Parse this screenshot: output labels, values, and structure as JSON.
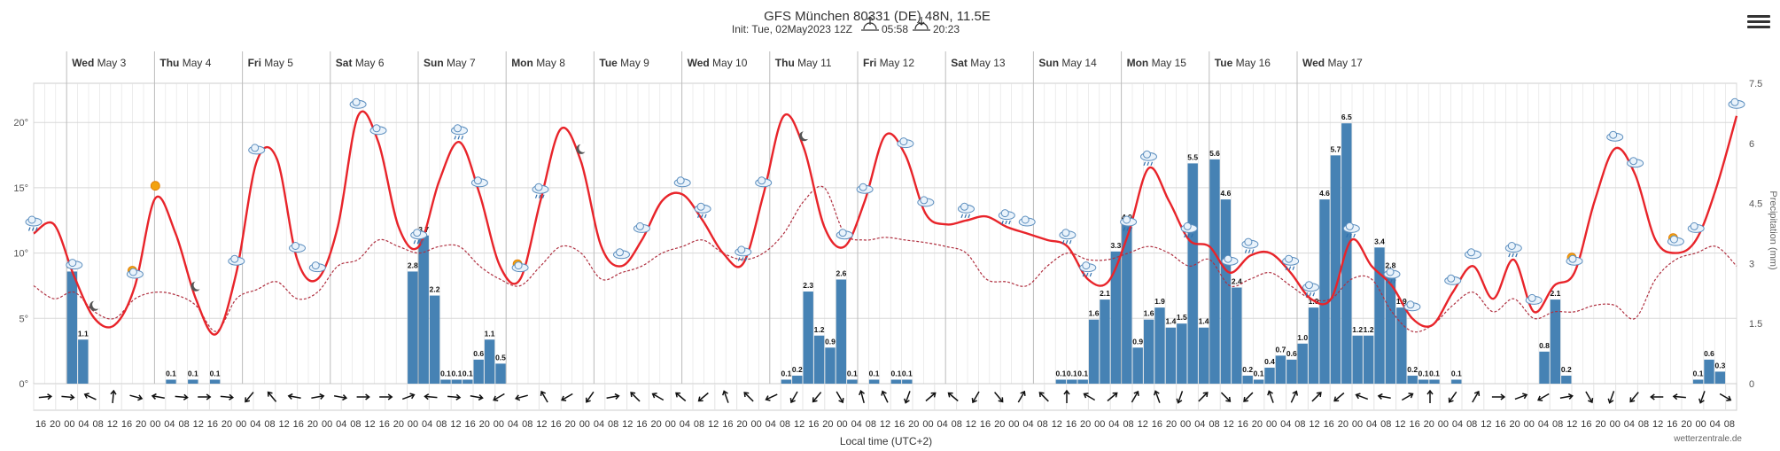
{
  "header": {
    "title": "GFS München 80331 (DE) 48N, 11.5E",
    "subtitle_prefix": "Init: Tue, 02May2023 12Z",
    "sunrise": "05:58",
    "sunset": "20:23"
  },
  "menu": {
    "icon": "hamburger-menu-icon"
  },
  "footer": {
    "credit": "wetterzentrale.de"
  },
  "colors": {
    "temp_line": "#e8242a",
    "dewpoint_line": "#b03040",
    "precip_bar": "#4682b4",
    "grid": "#e0e0e0",
    "axis_text": "#333333"
  },
  "chart_data": {
    "type": "line",
    "xlabel": "Local time (UTC+2)",
    "ylabel_left": "",
    "ylabel_right": "Precipitation (mm)",
    "ylim_temp": [
      0,
      23
    ],
    "ylim_precip": [
      0,
      7.5
    ],
    "yticks_temp": [
      "0°",
      "5°",
      "10°",
      "15°",
      "20°"
    ],
    "yticks_precip": [
      "0",
      "1.5",
      "3",
      "4.5",
      "6",
      "7.5"
    ],
    "x_hour_labels": [
      "16",
      "20",
      "00",
      "04",
      "08",
      "12",
      "16",
      "20",
      "00",
      "04",
      "08",
      "12",
      "16",
      "20",
      "00",
      "04",
      "08",
      "12",
      "16",
      "20",
      "00",
      "04",
      "08",
      "12",
      "16",
      "20",
      "00",
      "04",
      "08",
      "12",
      "16",
      "20",
      "00",
      "04",
      "08",
      "12",
      "16",
      "20",
      "00",
      "04",
      "08",
      "12",
      "16",
      "20",
      "00",
      "04",
      "08",
      "12",
      "16",
      "20",
      "00",
      "04",
      "08",
      "12",
      "16",
      "20",
      "00",
      "04",
      "08",
      "12",
      "16",
      "20",
      "00",
      "04",
      "08",
      "12",
      "16",
      "20",
      "00",
      "04",
      "08",
      "12",
      "16",
      "20",
      "00",
      "04",
      "08",
      "12",
      "16",
      "20",
      "00",
      "04",
      "08",
      "12",
      "16",
      "20",
      "00",
      "04",
      "08",
      "12",
      "16",
      "20",
      "00",
      "04",
      "08",
      "12",
      "16",
      "20",
      "00",
      "04",
      "08",
      "12",
      "16",
      "20",
      "00",
      "04",
      "08",
      "12",
      "16",
      "20",
      "00",
      "04",
      "08",
      "12",
      "16",
      "20",
      "00",
      "04",
      "08"
    ],
    "day_labels": [
      {
        "dow": "Wed",
        "date": "May 3"
      },
      {
        "dow": "Thu",
        "date": "May 4"
      },
      {
        "dow": "Fri",
        "date": "May 5"
      },
      {
        "dow": "Sat",
        "date": "May 6"
      },
      {
        "dow": "Sun",
        "date": "May 7"
      },
      {
        "dow": "Mon",
        "date": "May 8"
      },
      {
        "dow": "Tue",
        "date": "May 9"
      },
      {
        "dow": "Wed",
        "date": "May 10"
      },
      {
        "dow": "Thu",
        "date": "May 11"
      },
      {
        "dow": "Fri",
        "date": "May 12"
      },
      {
        "dow": "Sat",
        "date": "May 13"
      },
      {
        "dow": "Sun",
        "date": "May 14"
      },
      {
        "dow": "Mon",
        "date": "May 15"
      },
      {
        "dow": "Tue",
        "date": "May 16"
      },
      {
        "dow": "Wed",
        "date": "May 17"
      }
    ],
    "series": [
      {
        "name": "Temperature",
        "values": [
          11.5,
          12.2,
          8.2,
          5.0,
          4.5,
          7.5,
          14.2,
          11.5,
          6.5,
          3.8,
          8.5,
          17.0,
          17.2,
          9.5,
          8.0,
          12.0,
          20.5,
          18.5,
          12.0,
          10.5,
          15.5,
          18.5,
          14.5,
          9.0,
          8.0,
          14.0,
          19.5,
          17.0,
          10.5,
          9.0,
          11.0,
          14.0,
          14.5,
          12.5,
          10.0,
          9.2,
          14.5,
          20.5,
          18.0,
          12.0,
          10.5,
          14.0,
          19.0,
          17.5,
          13.0,
          12.2,
          12.5,
          12.8,
          12.0,
          11.5,
          11.0,
          10.5,
          8.0,
          7.8,
          11.5,
          16.5,
          14.0,
          11.0,
          10.5,
          8.5,
          9.8,
          10.0,
          8.5,
          6.5,
          6.5,
          11.0,
          9.0,
          7.5,
          5.0,
          4.5,
          7.0,
          9.0,
          6.5,
          9.5,
          5.5,
          7.5,
          8.5,
          14.0,
          18.0,
          16.0,
          11.0,
          10.0,
          11.0,
          15.0,
          20.5
        ]
      },
      {
        "name": "Dewpoint",
        "values": [
          7.5,
          6.5,
          7.0,
          5.5,
          5.0,
          6.5,
          7.0,
          6.8,
          6.0,
          4.0,
          6.5,
          7.2,
          7.8,
          6.5,
          7.0,
          9.0,
          9.5,
          11.0,
          10.5,
          10.0,
          10.5,
          10.5,
          9.0,
          8.0,
          7.5,
          9.0,
          10.5,
          10.0,
          8.0,
          8.5,
          9.0,
          10.0,
          10.5,
          11.0,
          10.0,
          9.5,
          10.0,
          11.5,
          14.0,
          15.0,
          11.5,
          11.0,
          11.2,
          11.0,
          10.8,
          10.5,
          10.0,
          8.0,
          7.8,
          7.5,
          9.0,
          10.0,
          9.5,
          9.5,
          10.0,
          10.5,
          10.0,
          9.0,
          9.5,
          7.5,
          8.0,
          8.5,
          7.5,
          6.5,
          6.5,
          8.0,
          8.0,
          5.5,
          4.0,
          4.5,
          6.0,
          7.0,
          5.5,
          6.5,
          5.0,
          5.5,
          5.5,
          6.0,
          6.0,
          5.0,
          8.0,
          9.5,
          10.0,
          10.5,
          9.0
        ]
      }
    ],
    "precip_bars": [
      {
        "i": 3,
        "v": 2.8,
        "label": "2.8"
      },
      {
        "i": 4,
        "v": 1.1,
        "label": "1.1"
      },
      {
        "i": 12,
        "v": 0.1,
        "label": "0.1"
      },
      {
        "i": 14,
        "v": 0.1,
        "label": "0.1"
      },
      {
        "i": 16,
        "v": 0.1,
        "label": "0.1"
      },
      {
        "i": 34,
        "v": 2.8,
        "label": "2.8"
      },
      {
        "i": 35,
        "v": 3.7,
        "label": "3.7"
      },
      {
        "i": 36,
        "v": 2.2,
        "label": "2.2"
      },
      {
        "i": 37,
        "v": 0.1,
        "label": "0.1"
      },
      {
        "i": 38,
        "v": 0.1,
        "label": "0.1"
      },
      {
        "i": 39,
        "v": 0.1,
        "label": "0.1"
      },
      {
        "i": 40,
        "v": 0.6,
        "label": "0.6"
      },
      {
        "i": 41,
        "v": 1.1,
        "label": "1.1"
      },
      {
        "i": 42,
        "v": 0.5,
        "label": "0.5"
      },
      {
        "i": 68,
        "v": 0.1,
        "label": "0.1"
      },
      {
        "i": 69,
        "v": 0.2,
        "label": "0.2"
      },
      {
        "i": 70,
        "v": 2.3,
        "label": "2.3"
      },
      {
        "i": 71,
        "v": 1.2,
        "label": "1.2"
      },
      {
        "i": 72,
        "v": 0.9,
        "label": "0.9"
      },
      {
        "i": 73,
        "v": 2.6,
        "label": "2.6"
      },
      {
        "i": 74,
        "v": 0.1,
        "label": "0.1"
      },
      {
        "i": 76,
        "v": 0.1,
        "label": "0.1"
      },
      {
        "i": 78,
        "v": 0.1,
        "label": "0.1"
      },
      {
        "i": 79,
        "v": 0.1,
        "label": "0.1"
      },
      {
        "i": 93,
        "v": 0.1,
        "label": "0.1"
      },
      {
        "i": 94,
        "v": 0.1,
        "label": "0.1"
      },
      {
        "i": 95,
        "v": 0.1,
        "label": "0.1"
      },
      {
        "i": 96,
        "v": 1.6,
        "label": "1.6"
      },
      {
        "i": 97,
        "v": 2.1,
        "label": "2.1"
      },
      {
        "i": 98,
        "v": 3.3,
        "label": "3.3"
      },
      {
        "i": 99,
        "v": 4.0,
        "label": "4.0"
      },
      {
        "i": 100,
        "v": 0.9,
        "label": "0.9"
      },
      {
        "i": 101,
        "v": 1.6,
        "label": "1.6"
      },
      {
        "i": 102,
        "v": 1.9,
        "label": "1.9"
      },
      {
        "i": 103,
        "v": 1.4,
        "label": "1.4"
      },
      {
        "i": 104,
        "v": 1.5,
        "label": "1.5"
      },
      {
        "i": 105,
        "v": 5.5,
        "label": "5.5"
      },
      {
        "i": 106,
        "v": 1.4,
        "label": "1.4"
      },
      {
        "i": 107,
        "v": 5.6,
        "label": "5.6"
      },
      {
        "i": 108,
        "v": 4.6,
        "label": "4.6"
      },
      {
        "i": 109,
        "v": 2.4,
        "label": "2.4"
      },
      {
        "i": 110,
        "v": 0.2,
        "label": "0.2"
      },
      {
        "i": 111,
        "v": 0.1,
        "label": "0.1"
      },
      {
        "i": 112,
        "v": 0.4,
        "label": "0.4"
      },
      {
        "i": 113,
        "v": 0.7,
        "label": "0.7"
      },
      {
        "i": 114,
        "v": 0.6,
        "label": "0.6"
      },
      {
        "i": 115,
        "v": 1.0,
        "label": "1.0"
      },
      {
        "i": 116,
        "v": 1.9,
        "label": "1.9"
      },
      {
        "i": 117,
        "v": 4.6,
        "label": "4.6"
      },
      {
        "i": 118,
        "v": 5.7,
        "label": "5.7"
      },
      {
        "i": 119,
        "v": 6.5,
        "label": "6.5"
      },
      {
        "i": 120,
        "v": 1.2,
        "label": "1.2"
      },
      {
        "i": 121,
        "v": 1.2,
        "label": "1.2"
      },
      {
        "i": 122,
        "v": 3.4,
        "label": "3.4"
      },
      {
        "i": 123,
        "v": 2.8,
        "label": "2.8"
      },
      {
        "i": 124,
        "v": 1.9,
        "label": "1.9"
      },
      {
        "i": 125,
        "v": 0.2,
        "label": "0.2"
      },
      {
        "i": 126,
        "v": 0.1,
        "label": "0.1"
      },
      {
        "i": 127,
        "v": 0.1,
        "label": "0.1"
      },
      {
        "i": 129,
        "v": 0.1,
        "label": "0.1"
      },
      {
        "i": 137,
        "v": 0.8,
        "label": "0.8"
      },
      {
        "i": 138,
        "v": 2.1,
        "label": "2.1"
      },
      {
        "i": 139,
        "v": 0.2,
        "label": "0.2"
      },
      {
        "i": 151,
        "v": 0.1,
        "label": "0.1"
      },
      {
        "i": 152,
        "v": 0.6,
        "label": "0.6"
      },
      {
        "i": 153,
        "v": 0.3,
        "label": "0.3"
      }
    ],
    "wind_directions_deg": [
      265,
      275,
      115,
      185,
      285,
      100,
      275,
      270,
      275,
      40,
      140,
      100,
      260,
      280,
      270,
      270,
      250,
      95,
      275,
      280,
      60,
      75,
      150,
      60,
      35,
      260,
      135,
      120,
      130,
      50,
      160,
      135,
      65,
      30,
      40,
      330,
      165,
      155,
      20,
      230,
      130,
      30,
      320,
      210,
      135,
      180,
      120,
      230,
      210,
      160,
      20,
      225,
      315,
      45,
      160,
      205,
      225,
      50,
      110,
      100,
      240,
      180,
      35,
      210,
      270,
      250,
      60,
      260,
      330,
      20,
      40,
      90,
      95,
      20,
      300
    ],
    "weather_icons": [
      "rain",
      "cloud",
      "moon",
      "sun-cloud",
      "sun",
      "moon",
      "cloud",
      "cloud",
      "cloud",
      "cloud",
      "cloud",
      "cloud",
      "rain",
      "rain",
      "cloud",
      "sun-cloud",
      "rain",
      "moon",
      "cloud",
      "cloud",
      "cloud",
      "rain",
      "rain",
      "cloud",
      "moon",
      "cloud",
      "cloud",
      "cloud",
      "cloud",
      "rain",
      "rain",
      "cloud",
      "rain",
      "rain",
      "rain",
      "rain",
      "rain",
      "cloud",
      "rain",
      "rain",
      "rain",
      "rain",
      "rain",
      "cloud",
      "cloud",
      "cloud",
      "rain",
      "cloud",
      "sun-cloud",
      "cloud",
      "cloud",
      "sun-cloud",
      "cloud",
      "cloud"
    ],
    "grid": true
  }
}
